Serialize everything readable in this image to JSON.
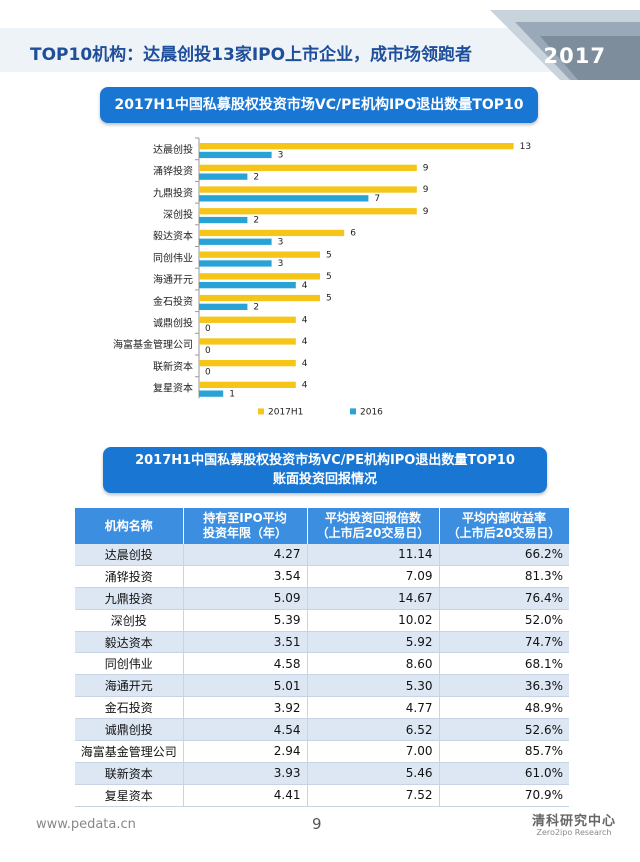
{
  "header": {
    "title": "TOP10机构：达晨创投13家IPO上市企业，成市场领跑者",
    "year": "2017"
  },
  "chart_title": "2017H1中国私募股权投资市场VC/PE机构IPO退出数量TOP10",
  "chart_data": {
    "type": "bar",
    "orientation": "horizontal",
    "categories": [
      "达晨创投",
      "涌铧投资",
      "九鼎投资",
      "深创投",
      "毅达资本",
      "同创伟业",
      "海通开元",
      "金石投资",
      "诚鼎创投",
      "海富基金管理公司",
      "联新资本",
      "复星资本"
    ],
    "series": [
      {
        "name": "2017H1",
        "color": "#f5c518",
        "values": [
          13,
          9,
          9,
          9,
          6,
          5,
          5,
          5,
          4,
          4,
          4,
          4
        ]
      },
      {
        "name": "2016",
        "color": "#29a3d6",
        "values": [
          3,
          2,
          7,
          2,
          3,
          3,
          4,
          2,
          0,
          0,
          0,
          1
        ]
      }
    ],
    "xlim": [
      0,
      13
    ],
    "legend": "bottom"
  },
  "table_title": {
    "line1": "2017H1中国私募股权投资市场VC/PE机构IPO退出数量TOP10",
    "line2": "账面投资回报情况"
  },
  "table": {
    "headers": [
      {
        "line1": "机构名称",
        "line2": ""
      },
      {
        "line1": "持有至IPO平均",
        "line2": "投资年限（年）"
      },
      {
        "line1": "平均投资回报倍数",
        "line2": "（上市后20交易日）"
      },
      {
        "line1": "平均内部收益率",
        "line2": "（上市后20交易日）"
      }
    ],
    "rows": [
      [
        "达晨创投",
        "4.27",
        "11.14",
        "66.2%"
      ],
      [
        "涌铧投资",
        "3.54",
        "7.09",
        "81.3%"
      ],
      [
        "九鼎投资",
        "5.09",
        "14.67",
        "76.4%"
      ],
      [
        "深创投",
        "5.39",
        "10.02",
        "52.0%"
      ],
      [
        "毅达资本",
        "3.51",
        "5.92",
        "74.7%"
      ],
      [
        "同创伟业",
        "4.58",
        "8.60",
        "68.1%"
      ],
      [
        "海通开元",
        "5.01",
        "5.30",
        "36.3%"
      ],
      [
        "金石投资",
        "3.92",
        "4.77",
        "48.9%"
      ],
      [
        "诚鼎创投",
        "4.54",
        "6.52",
        "52.6%"
      ],
      [
        "海富基金管理公司",
        "2.94",
        "7.00",
        "85.7%"
      ],
      [
        "联新资本",
        "3.93",
        "5.46",
        "61.0%"
      ],
      [
        "复星资本",
        "4.41",
        "7.52",
        "70.9%"
      ]
    ]
  },
  "footer": {
    "url": "www.pedata.cn",
    "page": "9",
    "logo_cn": "清科研究中心",
    "logo_en": "Zero2ipo Research"
  }
}
